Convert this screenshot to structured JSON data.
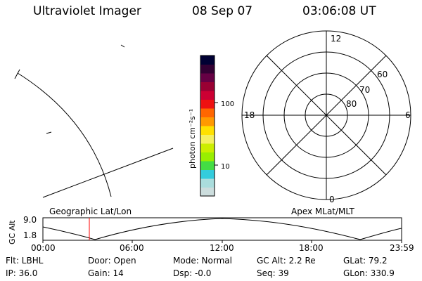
{
  "header": {
    "instrument": "Ultraviolet Imager",
    "date": "08 Sep 07",
    "time": "03:06:08 UT"
  },
  "colorbar": {
    "unit_label": "photon cm⁻²s⁻¹",
    "ticks": [
      "100",
      "10"
    ],
    "colors": [
      "#ccdddd",
      "#aadddd",
      "#33ccdd",
      "#44dd44",
      "#99ee00",
      "#ccee00",
      "#f5f060",
      "#ffe100",
      "#ff9900",
      "#ff6600",
      "#ee1111",
      "#cc0033",
      "#990033",
      "#660044",
      "#330033",
      "#000033"
    ]
  },
  "polar_plot": {
    "mlt_labels": {
      "top": "12",
      "left": "18",
      "right": "6",
      "bottom": "0"
    },
    "lat_labels": [
      "60",
      "70",
      "80"
    ]
  },
  "timeline": {
    "left_title": "Geographic Lat/Lon",
    "right_title": "Apex MLat/MLT",
    "ylabel": "GC Alt",
    "y_ticks": [
      "9.0",
      "1.8"
    ],
    "x_ticks": [
      "00:00",
      "06:00",
      "12:00",
      "18:00",
      "23:59"
    ],
    "marker_color": "#ff0000"
  },
  "info": {
    "row1": [
      "Flt: LBHL",
      "Door: Open",
      "Mode: Normal",
      "GC Alt: 2.2 Re",
      "GLat:  79.2"
    ],
    "row2": [
      "IP: 36.0",
      "Gain: 14",
      "Dsp:    -0.0",
      "Seq: 39",
      "GLon: 330.9"
    ]
  }
}
